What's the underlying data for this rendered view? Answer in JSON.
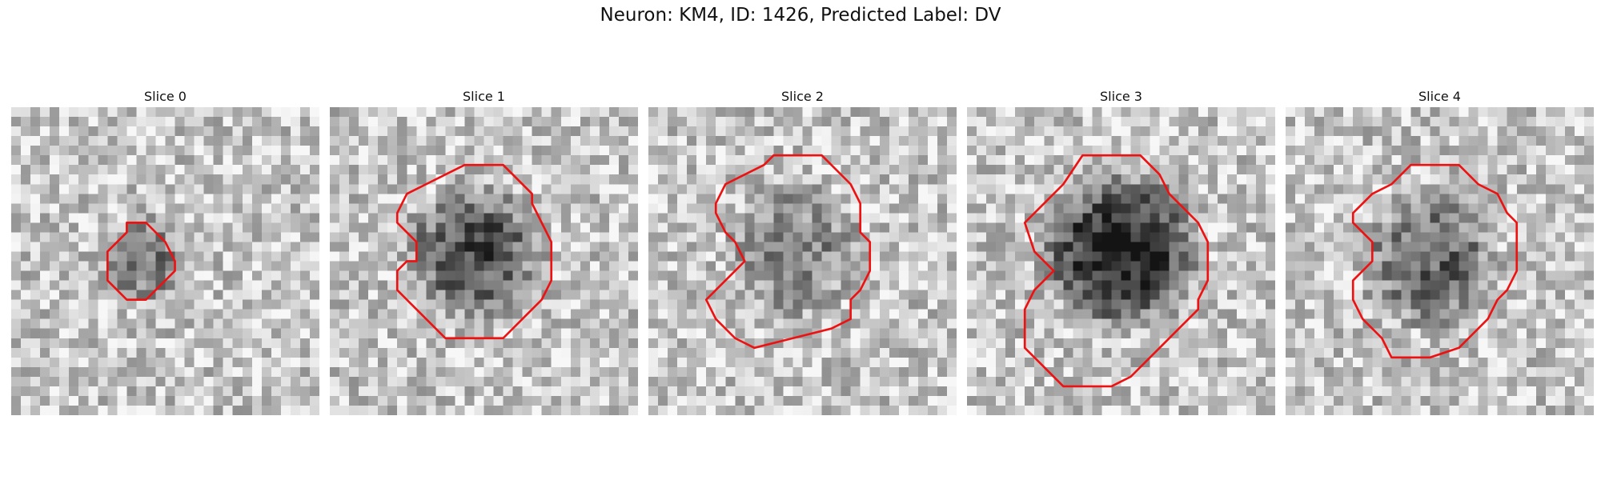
{
  "figure": {
    "title": "Neuron: KM4, ID: 1426, Predicted Label: DV"
  },
  "panels": [
    {
      "title": "Slice 0",
      "contour": [
        [
          12,
          12
        ],
        [
          14,
          12
        ],
        [
          16,
          14
        ],
        [
          17,
          16
        ],
        [
          17,
          17
        ],
        [
          16,
          18
        ],
        [
          15,
          19
        ],
        [
          14,
          20
        ],
        [
          12,
          20
        ],
        [
          11,
          19
        ],
        [
          10,
          18
        ],
        [
          10,
          15
        ],
        [
          11,
          14
        ],
        [
          12,
          13
        ]
      ],
      "blob": [
        14,
        16,
        5,
        0.4
      ],
      "seed": 1
    },
    {
      "title": "Slice 1",
      "contour": [
        [
          14,
          6
        ],
        [
          18,
          6
        ],
        [
          19,
          7
        ],
        [
          21,
          9
        ],
        [
          21,
          10
        ],
        [
          22,
          12
        ],
        [
          23,
          14
        ],
        [
          23,
          18
        ],
        [
          22,
          20
        ],
        [
          20,
          22
        ],
        [
          18,
          24
        ],
        [
          12,
          24
        ],
        [
          10,
          22
        ],
        [
          8,
          20
        ],
        [
          7,
          19
        ],
        [
          7,
          17
        ],
        [
          8,
          16
        ],
        [
          9,
          16
        ],
        [
          9,
          14
        ],
        [
          8,
          13
        ],
        [
          7,
          12
        ],
        [
          7,
          11
        ],
        [
          8,
          9
        ],
        [
          10,
          8
        ],
        [
          12,
          7
        ]
      ],
      "blob": [
        15,
        15,
        8,
        0.55
      ],
      "seed": 2
    },
    {
      "title": "Slice 2",
      "contour": [
        [
          13,
          5
        ],
        [
          18,
          5
        ],
        [
          21,
          8
        ],
        [
          22,
          10
        ],
        [
          22,
          13
        ],
        [
          23,
          14
        ],
        [
          23,
          17
        ],
        [
          22,
          19
        ],
        [
          21,
          20
        ],
        [
          21,
          22
        ],
        [
          19,
          23
        ],
        [
          15,
          24
        ],
        [
          11,
          25
        ],
        [
          9,
          24
        ],
        [
          7,
          22
        ],
        [
          6,
          20
        ],
        [
          7,
          19
        ],
        [
          9,
          17
        ],
        [
          10,
          16
        ],
        [
          9,
          14
        ],
        [
          8,
          13
        ],
        [
          7,
          11
        ],
        [
          7,
          10
        ],
        [
          8,
          8
        ],
        [
          10,
          7
        ],
        [
          12,
          6
        ]
      ],
      "blob": [
        15,
        15,
        8,
        0.32
      ],
      "seed": 3
    },
    {
      "title": "Slice 3",
      "contour": [
        [
          12,
          5
        ],
        [
          18,
          5
        ],
        [
          20,
          7
        ],
        [
          21,
          9
        ],
        [
          24,
          12
        ],
        [
          25,
          14
        ],
        [
          25,
          18
        ],
        [
          24,
          20
        ],
        [
          24,
          21
        ],
        [
          22,
          23
        ],
        [
          20,
          25
        ],
        [
          17,
          28
        ],
        [
          15,
          29
        ],
        [
          10,
          29
        ],
        [
          8,
          27
        ],
        [
          6,
          25
        ],
        [
          6,
          21
        ],
        [
          7,
          19
        ],
        [
          8,
          18
        ],
        [
          9,
          17
        ],
        [
          8,
          16
        ],
        [
          7,
          15
        ],
        [
          6,
          12
        ],
        [
          8,
          10
        ],
        [
          10,
          8
        ]
      ],
      "blob": [
        16,
        15,
        9,
        0.8
      ],
      "seed": 4
    },
    {
      "title": "Slice 4",
      "contour": [
        [
          13,
          6
        ],
        [
          18,
          6
        ],
        [
          20,
          8
        ],
        [
          22,
          9
        ],
        [
          23,
          11
        ],
        [
          24,
          12
        ],
        [
          24,
          17
        ],
        [
          23,
          19
        ],
        [
          22,
          20
        ],
        [
          21,
          22
        ],
        [
          19,
          24
        ],
        [
          18,
          25
        ],
        [
          15,
          26
        ],
        [
          11,
          26
        ],
        [
          10,
          24
        ],
        [
          8,
          22
        ],
        [
          7,
          20
        ],
        [
          7,
          18
        ],
        [
          8,
          17
        ],
        [
          9,
          16
        ],
        [
          9,
          14
        ],
        [
          8,
          13
        ],
        [
          7,
          12
        ],
        [
          7,
          11
        ],
        [
          9,
          9
        ],
        [
          11,
          8
        ]
      ],
      "blob": [
        15,
        16,
        8,
        0.45
      ],
      "seed": 5
    }
  ]
}
